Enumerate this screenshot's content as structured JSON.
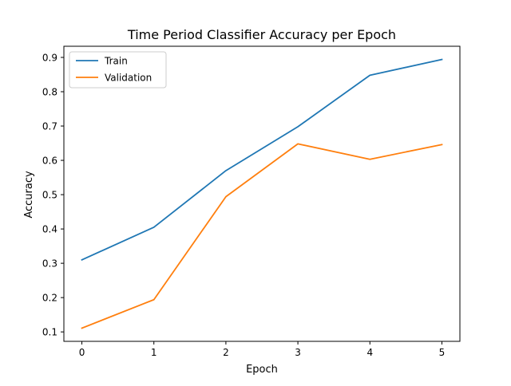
{
  "chart_data": {
    "type": "line",
    "title": "Time Period Classifier Accuracy per Epoch",
    "xlabel": "Epoch",
    "ylabel": "Accuracy",
    "x": [
      0,
      1,
      2,
      3,
      4,
      5
    ],
    "xlim": [
      -0.25,
      5.25
    ],
    "ylim": [
      0.0725,
      0.9325
    ],
    "xticks": [
      0,
      1,
      2,
      3,
      4,
      5
    ],
    "yticks": [
      0.1,
      0.2,
      0.3,
      0.4,
      0.5,
      0.6,
      0.7,
      0.8,
      0.9
    ],
    "grid": false,
    "legend_position": "top-left",
    "series": [
      {
        "name": "Train",
        "color": "#1f77b4",
        "values": [
          0.31,
          0.405,
          0.57,
          0.698,
          0.848,
          0.894
        ]
      },
      {
        "name": "Validation",
        "color": "#ff7f0e",
        "values": [
          0.111,
          0.194,
          0.494,
          0.648,
          0.603,
          0.646
        ]
      }
    ]
  }
}
